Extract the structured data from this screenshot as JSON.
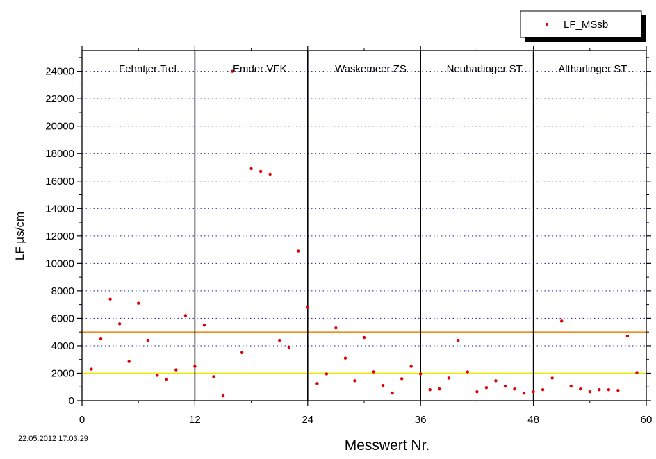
{
  "chart_data": {
    "type": "scatter",
    "xlabel": "Messwert Nr.",
    "ylabel": "LF µs/cm",
    "xlim": [
      0,
      60
    ],
    "ylim": [
      0,
      25500
    ],
    "xticks": [
      0,
      12,
      24,
      36,
      48,
      60
    ],
    "yticks": [
      0,
      2000,
      4000,
      6000,
      8000,
      10000,
      12000,
      14000,
      16000,
      18000,
      20000,
      22000,
      24000
    ],
    "grid": "horizontal dotted",
    "legend": {
      "position": "top-right",
      "entries": [
        "LF_MSsb"
      ]
    },
    "series": [
      {
        "name": "LF_MSsb",
        "color": "#e00000",
        "points": [
          [
            1,
            2300
          ],
          [
            2,
            4500
          ],
          [
            3,
            7400
          ],
          [
            4,
            5600
          ],
          [
            5,
            2850
          ],
          [
            6,
            7100
          ],
          [
            7,
            4400
          ],
          [
            8,
            1850
          ],
          [
            9,
            1550
          ],
          [
            10,
            2250
          ],
          [
            11,
            6200
          ],
          [
            12,
            2500
          ],
          [
            13,
            5500
          ],
          [
            14,
            1750
          ],
          [
            15,
            350
          ],
          [
            16,
            24000
          ],
          [
            17,
            3500
          ],
          [
            18,
            16900
          ],
          [
            19,
            16700
          ],
          [
            20,
            16500
          ],
          [
            21,
            4400
          ],
          [
            22,
            3900
          ],
          [
            23,
            10900
          ],
          [
            24,
            6800
          ],
          [
            25,
            1250
          ],
          [
            26,
            1950
          ],
          [
            27,
            5300
          ],
          [
            28,
            3100
          ],
          [
            29,
            1450
          ],
          [
            30,
            4600
          ],
          [
            31,
            2100
          ],
          [
            32,
            1100
          ],
          [
            33,
            550
          ],
          [
            34,
            1600
          ],
          [
            35,
            2500
          ],
          [
            36,
            1950
          ],
          [
            37,
            800
          ],
          [
            38,
            850
          ],
          [
            39,
            1650
          ],
          [
            40,
            4400
          ],
          [
            41,
            2100
          ],
          [
            42,
            650
          ],
          [
            43,
            950
          ],
          [
            44,
            1450
          ],
          [
            45,
            1050
          ],
          [
            46,
            850
          ],
          [
            47,
            550
          ],
          [
            48,
            650
          ],
          [
            49,
            800
          ],
          [
            50,
            1650
          ],
          [
            51,
            5800
          ],
          [
            52,
            1050
          ],
          [
            53,
            850
          ],
          [
            54,
            650
          ],
          [
            55,
            800
          ],
          [
            56,
            800
          ],
          [
            57,
            750
          ],
          [
            58,
            4700
          ],
          [
            59,
            2050
          ]
        ]
      }
    ],
    "reference_lines": [
      {
        "y": 5000,
        "color": "#f08a1a"
      },
      {
        "y": 2000,
        "color": "#e8e800"
      }
    ],
    "section_dividers": [
      12,
      24,
      36,
      48
    ],
    "sections": [
      {
        "label": "Fehntjer Tief",
        "x_center": 7.0
      },
      {
        "label": "Emder VFK",
        "x_center": 18.9
      },
      {
        "label": "Waskemeer ZS",
        "x_center": 30.7
      },
      {
        "label": "Neuharlinger ST",
        "x_center": 42.8
      },
      {
        "label": "Altharlinger ST",
        "x_center": 54.3
      }
    ]
  },
  "timestamp": "22.05.2012  17:03:29"
}
